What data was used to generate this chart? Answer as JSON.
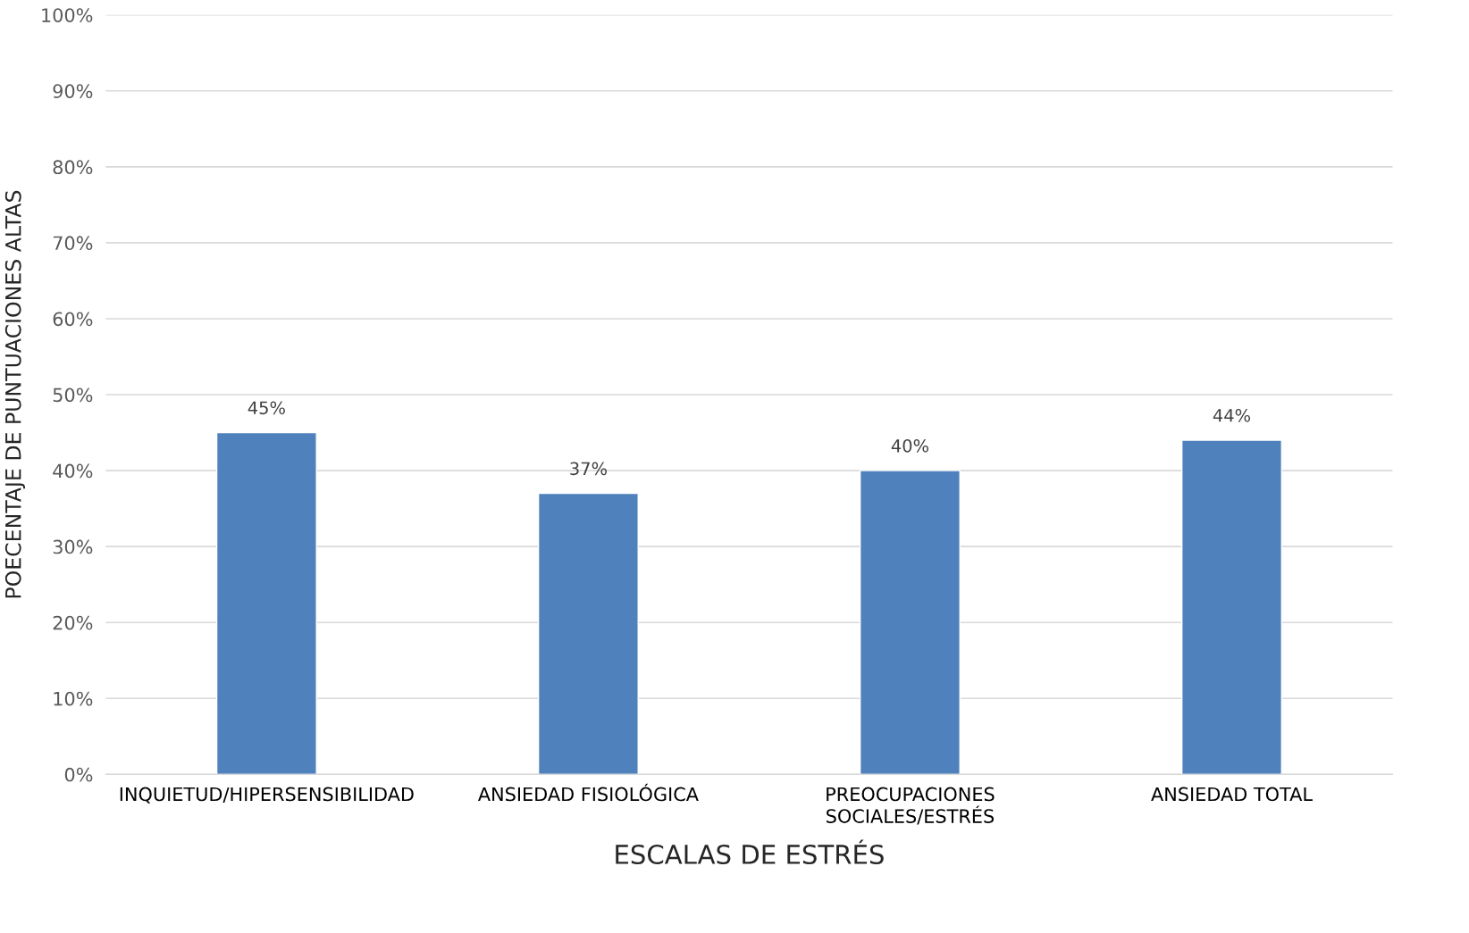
{
  "chart_data": {
    "type": "bar",
    "categories": [
      "INQUIETUD/HIPERSENSIBILIDAD",
      "ANSIEDAD FISIOLÓGICA",
      "PREOCUPACIONES\nSOCIALES/ESTRÉS",
      "ANSIEDAD TOTAL"
    ],
    "values": [
      45,
      37,
      40,
      44
    ],
    "value_labels": [
      "45%",
      "37%",
      "40%",
      "44%"
    ],
    "color": "#4f81bd",
    "xlabel": "ESCALAS DE ESTRÉS",
    "ylabel": "POECENTAJE DE PUNTUACIONES ALTAS",
    "ylim": [
      0,
      100
    ],
    "yticks": [
      {
        "value": 0,
        "label": "0%"
      },
      {
        "value": 10,
        "label": "10%"
      },
      {
        "value": 20,
        "label": "20%"
      },
      {
        "value": 30,
        "label": "30%"
      },
      {
        "value": 40,
        "label": "40%"
      },
      {
        "value": 50,
        "label": "50%"
      },
      {
        "value": 60,
        "label": "60%"
      },
      {
        "value": 70,
        "label": "70%"
      },
      {
        "value": 80,
        "label": "80%"
      },
      {
        "value": 90,
        "label": "90%"
      },
      {
        "value": 100,
        "label": "100%"
      }
    ],
    "grid": "y"
  }
}
